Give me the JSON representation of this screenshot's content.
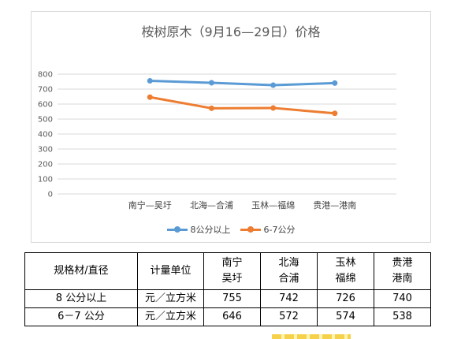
{
  "chart_data": {
    "type": "line",
    "title": "桉树原木（9月16—29日）价格",
    "categories": [
      "南宁—吴圩",
      "北海—合浦",
      "玉林—福绵",
      "贵港—港南"
    ],
    "ylim": [
      0,
      800
    ],
    "yticks": [
      "0",
      "100",
      "200",
      "300",
      "400",
      "500",
      "600",
      "700",
      "800"
    ],
    "grid": true,
    "legend_position": "bottom",
    "series": [
      {
        "name": "8公分以上",
        "color": "#5b9bd5",
        "values": [
          755,
          742,
          726,
          740
        ]
      },
      {
        "name": "6-7公分",
        "color": "#ed7d31",
        "values": [
          646,
          572,
          574,
          538
        ]
      }
    ]
  },
  "table": {
    "headers": {
      "spec": "规格材/直径",
      "unit": "计量单位",
      "regions": [
        {
          "line1": "南宁",
          "line2": "吴圩"
        },
        {
          "line1": "北海",
          "line2": "合浦"
        },
        {
          "line1": "玉林",
          "line2": "福绵"
        },
        {
          "line1": "贵港",
          "line2": "港南"
        }
      ]
    },
    "rows": [
      {
        "spec": "8 公分以上",
        "unit": "元／立方米",
        "values": [
          "755",
          "742",
          "726",
          "740"
        ]
      },
      {
        "spec": "6－7 公分",
        "unit": "元／立方米",
        "values": [
          "646",
          "572",
          "574",
          "538"
        ]
      }
    ]
  }
}
